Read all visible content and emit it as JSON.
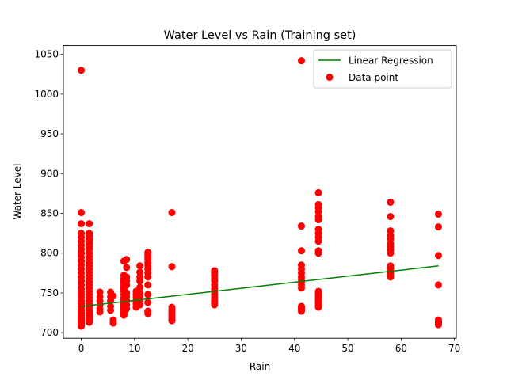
{
  "chart_data": {
    "type": "scatter",
    "title": "Water Level vs Rain (Training set)",
    "xlabel": "Rain",
    "ylabel": "Water Level",
    "xlim": [
      -3.35,
      70.35
    ],
    "ylim": [
      693,
      1061
    ],
    "xticks": [
      "0",
      "10",
      "20",
      "30",
      "40",
      "50",
      "60",
      "70"
    ],
    "yticks": [
      "700",
      "750",
      "800",
      "850",
      "900",
      "950",
      "1000",
      "1050"
    ],
    "grid": false,
    "legend_position": "upper right",
    "series": [
      {
        "name": "Linear Regression",
        "kind": "line",
        "color": "#008000",
        "x": [
          0,
          67
        ],
        "y": [
          733,
          784
        ]
      },
      {
        "name": "Data point",
        "kind": "scatter",
        "color": "#ff0000",
        "x": [
          0,
          0,
          0,
          0,
          0,
          0,
          0,
          0,
          0,
          0,
          0,
          0,
          0,
          0,
          0,
          0,
          0,
          0,
          0,
          0,
          0,
          0,
          0,
          0,
          0,
          0,
          0,
          0,
          0,
          0,
          0,
          0,
          0,
          0,
          0,
          0,
          0,
          1.5,
          1.5,
          1.5,
          1.5,
          1.5,
          1.5,
          1.5,
          1.5,
          1.5,
          1.5,
          1.5,
          1.5,
          1.5,
          1.5,
          1.5,
          1.5,
          1.5,
          1.5,
          1.5,
          1.5,
          1.5,
          1.5,
          1.5,
          1.5,
          1.5,
          1.5,
          1.5,
          1.5,
          1.5,
          1.5,
          1.5,
          1.5,
          3.5,
          3.5,
          3.5,
          3.5,
          3.5,
          3.5,
          5.5,
          5.5,
          5.5,
          5.5,
          5.5,
          6,
          6,
          6,
          8,
          8,
          8,
          8,
          8,
          8,
          8,
          8,
          8,
          8,
          8,
          8,
          8,
          8,
          8,
          8,
          8,
          8,
          8.5,
          8.5,
          8.5,
          8.5,
          8.5,
          8.5,
          8.5,
          8.5,
          8.5,
          8.5,
          10.3,
          10.3,
          10.3,
          10.3,
          10.3,
          10.3,
          11,
          11,
          11,
          11,
          11,
          11,
          11,
          11,
          11,
          12.5,
          12.5,
          12.5,
          12.5,
          12.5,
          12.5,
          12.5,
          12.5,
          12.5,
          12.5,
          12.5,
          12.5,
          12.5,
          12.5,
          17,
          17,
          17,
          17,
          17,
          17,
          17,
          17,
          17,
          17,
          25,
          25,
          25,
          25,
          25,
          25,
          25,
          25,
          25,
          25,
          25,
          25,
          25,
          41.3,
          41.3,
          41.3,
          41.3,
          41.3,
          41.3,
          41.3,
          41.3,
          41.3,
          41.3,
          41.3,
          41.3,
          41.3,
          41.3,
          41.3,
          44.5,
          44.5,
          44.5,
          44.5,
          44.5,
          44.5,
          44.5,
          44.5,
          44.5,
          44.5,
          44.5,
          44.5,
          44.5,
          44.5,
          44.5,
          44.5,
          44.5,
          44.5,
          44.5,
          44.5,
          44.5,
          44.5,
          44.5,
          44.5,
          58,
          58,
          58,
          58,
          58,
          58,
          58,
          58,
          58,
          58,
          58,
          58,
          58,
          58,
          58,
          58,
          58,
          67,
          67,
          67,
          67,
          67,
          67,
          67,
          67,
          67,
          67
        ],
        "y": [
          1030,
          851,
          837,
          825,
          820,
          815,
          810,
          805,
          800,
          795,
          790,
          785,
          780,
          775,
          770,
          765,
          760,
          755,
          750,
          747,
          744,
          740,
          737,
          734,
          731,
          728,
          725,
          722,
          720,
          718,
          716,
          714,
          712,
          710,
          708,
          800,
          790,
          837,
          825,
          822,
          818,
          815,
          812,
          808,
          805,
          800,
          796,
          792,
          788,
          784,
          780,
          776,
          772,
          768,
          764,
          760,
          756,
          752,
          748,
          744,
          740,
          736,
          732,
          728,
          725,
          722,
          719,
          716,
          713,
          751,
          745,
          740,
          735,
          730,
          726,
          751,
          745,
          740,
          733,
          728,
          746,
          716,
          712,
          790,
          772,
          768,
          765,
          762,
          758,
          755,
          752,
          748,
          744,
          741,
          738,
          735,
          732,
          729,
          726,
          724,
          722,
          792,
          782,
          770,
          765,
          760,
          750,
          745,
          740,
          735,
          730,
          752,
          748,
          744,
          740,
          736,
          732,
          784,
          776,
          770,
          765,
          757,
          750,
          745,
          740,
          735,
          801,
          798,
          795,
          792,
          788,
          784,
          780,
          775,
          770,
          760,
          748,
          738,
          727,
          724,
          851,
          783,
          732,
          729,
          726,
          723,
          720,
          718,
          716,
          715,
          778,
          775,
          772,
          768,
          765,
          760,
          755,
          752,
          748,
          744,
          740,
          737,
          735,
          1042,
          834,
          803,
          785,
          780,
          775,
          770,
          767,
          764,
          760,
          756,
          733,
          731,
          729,
          727,
          876,
          861,
          857,
          852,
          846,
          842,
          830,
          825,
          820,
          815,
          803,
          800,
          752,
          748,
          744,
          742,
          740,
          738,
          736,
          734,
          732,
          750,
          746,
          735,
          864,
          846,
          828,
          822,
          818,
          812,
          808,
          804,
          800,
          784,
          780,
          776,
          772,
          770,
          775,
          778,
          782,
          849,
          833,
          797,
          760,
          716,
          714,
          713,
          712,
          711,
          710
        ]
      }
    ]
  }
}
